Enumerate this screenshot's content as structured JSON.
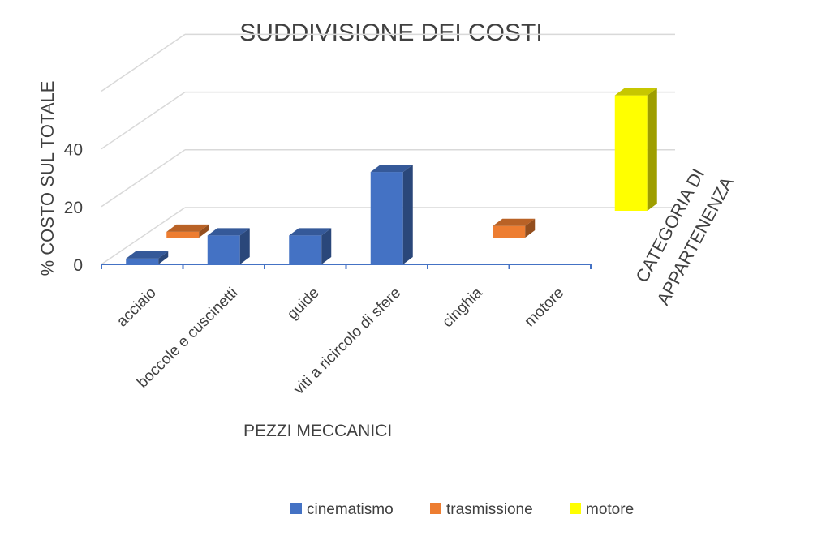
{
  "chart_data": {
    "type": "bar",
    "title": "SUDDIVISIONE DEI COSTI",
    "xlabel": "PEZZI MECCANICI",
    "ylabel": "% COSTO SUL TOTALE",
    "zlabel": "CATEGORIA DI APPARTENENZA",
    "categories": [
      "acciaio",
      "boccole e cuscinetti",
      "guide",
      "viti a ricircolo di sfere",
      "cinghia",
      "motore"
    ],
    "ylim": [
      0,
      60
    ],
    "yticks": [
      0,
      20,
      40
    ],
    "grid": true,
    "legend_position": "bottom",
    "series": [
      {
        "name": "cinematismo",
        "color": "#4472C4",
        "values": [
          2,
          10,
          10,
          32,
          null,
          null
        ]
      },
      {
        "name": "trasmissione",
        "color": "#ED7D31",
        "values": [
          2,
          null,
          null,
          null,
          4,
          null
        ]
      },
      {
        "name": "motore",
        "color": "#FFFF00",
        "values": [
          null,
          null,
          null,
          null,
          null,
          40
        ]
      }
    ]
  }
}
